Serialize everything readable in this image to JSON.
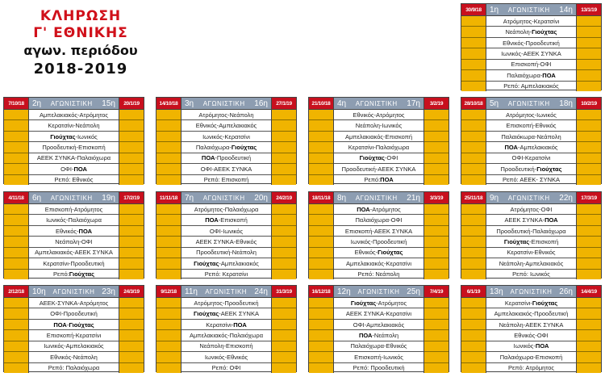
{
  "title": {
    "line1": "ΚΛΗΡΩΣΗ",
    "line2": "Γ' ΕΘΝΙΚΗΣ",
    "line3": "αγων. περιόδου",
    "line4": "2018-2019"
  },
  "round_label": "ΑΓΩΝΙΣΤΙΚΗ",
  "highlight_teams": [
    "ΠΟΑ",
    "Γιούχτας"
  ],
  "colors": {
    "title_red": "#d0101a",
    "date_red": "#c8101e",
    "header_gray": "#8d9db1",
    "side_yellow": "#f0b400"
  },
  "rounds": [
    {
      "first": "1η",
      "second": "14η",
      "date1": "30/9/18",
      "date2": "13/1/19",
      "matches": [
        "Ατρόμητος-Κερατσίνι",
        "Νεάπολη-Γιούχτας",
        "Εθνικός-Προοδευτική",
        "Ιωνικός-ΑΕΕΚ ΣΥΝΚΑ",
        "Επισκοπή-ΟΦΙ",
        "Παλαιόχωρα-ΠΟΑ",
        "Ρεπό: Αμπελακιακός"
      ]
    },
    {
      "first": "2η",
      "second": "15η",
      "date1": "7/10/18",
      "date2": "20/1/19",
      "matches": [
        "Αμπελακιακός-Ατρόμητος",
        "Κερατσίνι-Νεάπολη",
        "Γιούχτας-Ιωνικός",
        "Προοδευτική-Επισκοπή",
        "ΑΕΕΚ ΣΥΝΚΑ-Παλαιόχωρα",
        "ΟΦΙ-ΠΟΑ",
        "Ρεπό: Εθνικός"
      ]
    },
    {
      "first": "3η",
      "second": "16η",
      "date1": "14/10/18",
      "date2": "27/1/19",
      "matches": [
        "Ατρόμητος-Νεάπολη",
        "Εθνικός-Αμπελακιακός",
        "Ιωνικός-Κερατσίνι",
        "Παλαιόχωρα-Γιούχτας",
        "ΠΟΑ-Προοδευτική",
        "ΟΦΙ-ΑΕΕΚ ΣΥΝΚΑ",
        "Ρεπό: Επισκοπή"
      ]
    },
    {
      "first": "4η",
      "second": "17η",
      "date1": "21/10/18",
      "date2": "3/2/19",
      "matches": [
        "Εθνικός-Ατρόμητος",
        "Νεάπολη-Ιωνικός",
        "Αμπελακιακός-Επισκοπή",
        "Κερατσίνι-Παλαιόχωρα",
        "Γιούχτας-ΟΦΙ",
        "Προοδευτική-ΑΕΕΚ ΣΥΝΚΑ",
        "Ρεπό: ΠΟΑ"
      ]
    },
    {
      "first": "5η",
      "second": "18η",
      "date1": "28/10/18",
      "date2": "10/2/19",
      "matches": [
        "Ατρόμητος-Ιωνικός",
        "Επισκοπή-Εθνικός",
        "Παλαιόκωρα-Νεάπολη",
        "ΠΟΑ-Αμπελακιακός",
        "ΟΦΙ-Κερατσίνι",
        "Προοδευτική-Γιούχτας",
        "Ρεπό: ΑΕΕΚ- ΣΥΝΚΑ"
      ]
    },
    {
      "first": "6η",
      "second": "19η",
      "date1": "4/11/18",
      "date2": "17/2/19",
      "matches": [
        "Επισκοπή-Ατρόμητος",
        "Ιωνικός-Παλαιόχωρα",
        "Εθνικός-ΠΟΑ",
        "Νεάπολη-ΟΦΙ",
        "Αμπελακιακός-ΑΕΕΚ ΣΥΝΚΑ",
        "Κερατσίνι-Προοδευτική",
        "Ρεπό: Γιούχτας"
      ]
    },
    {
      "first": "7η",
      "second": "20η",
      "date1": "11/11/18",
      "date2": "24/2/19",
      "matches": [
        "Ατρόμητος-Παλαιόχωρα",
        "ΠΟΑ-Επισκοπή",
        "ΟΦΙ-Ιωνικός",
        "ΑΕΕΚ ΣΥΝΚΑ-Εθνικός",
        "Προοδευτική-Νεάπολη",
        "Γιούχτας-Αμπελακιακός",
        "Ρεπό: Κερατσίνι"
      ]
    },
    {
      "first": "8η",
      "second": "21η",
      "date1": "18/11/18",
      "date2": "3/3/19",
      "matches": [
        "ΠΟΑ-Ατρόμητος",
        "Παλαιόχωρα-ΟΦΙ",
        "Επισκοπή-ΑΕΕΚ ΣΥΝΚΑ",
        "Ιωνικός-Προοδευτική",
        "Εθνικός-Γιούχτας",
        "Αμπελακιακός-Κερατσίνι",
        "Ρεπό: Νεάπολη"
      ]
    },
    {
      "first": "9η",
      "second": "22η",
      "date1": "25/11/18",
      "date2": "17/3/19",
      "matches": [
        "Ατρόμητος-ΟΦΙ",
        "ΑΕΕΚ ΣΥΝΚΑ-ΠΟΑ",
        "Προοδευτική-Παλαιόχωρα",
        "Γιούχτας-Επισκοπή",
        "Κερατσίνι-Εθνικός",
        "Νεάπολη-Αμπελακιακός",
        "Ρεπό: Ιωνικός"
      ]
    },
    {
      "first": "10η",
      "second": "23η",
      "date1": "2/12/18",
      "date2": "24/3/19",
      "matches": [
        "ΑΕΕΚ-ΣΥΝΚΑ-Ατρόμητος",
        "ΟΦΙ-Προοδευτική",
        "ΠΟΑ-Γιούχτας",
        "Επισκοπή-Κερατσίνι",
        "Ιωνικός-Αμπελακιακός",
        "Εθνικός-Νεάπολη",
        "Ρεπό: Παλαιόχωρα"
      ]
    },
    {
      "first": "11η",
      "second": "24η",
      "date1": "9/12/18",
      "date2": "31/3/19",
      "matches": [
        "Ατρόμητος-Προοδευτική",
        "Γιούχτας-ΑΕΕΚ ΣΥΝΚΑ",
        "Κερατσίνι-ΠΟΑ",
        "Αμπελακιακός-Παλαιόχωρα",
        "Νεάπολη-Επισκοπή",
        "Ιωνικός-Εθνικός",
        "Ρεπό: ΟΦΙ"
      ]
    },
    {
      "first": "12η",
      "second": "25η",
      "date1": "16/12/18",
      "date2": "7/4/19",
      "matches": [
        "Γιούχτας-Ατρόμητος",
        "ΑΕΕΚ ΣΥΝΚΑ-Κερατσίνι",
        "ΟΦΙ-Αμπελακιακός",
        "ΠΟΑ-Νεάπολη",
        "Παλαιόχωρα-Εθνικός",
        "Επισκοπή-Ιωνικός",
        "Ρεπό: Προοδευτική"
      ]
    },
    {
      "first": "13η",
      "second": "26η",
      "date1": "6/1/19",
      "date2": "14/4/19",
      "matches": [
        "Κερατσίνι-Γιούχτας",
        "Αμπελακιακός-Προοδευτική",
        "Νεάπολη-ΑΕΕΚ ΣΥΝΚΑ",
        "Εθνικός-ΟΦΙ",
        "Ιωνικός-ΠΟΑ",
        "Παλαιόχωρα-Επισκοπή",
        "Ρεπό: Ατρόμητος"
      ]
    }
  ]
}
